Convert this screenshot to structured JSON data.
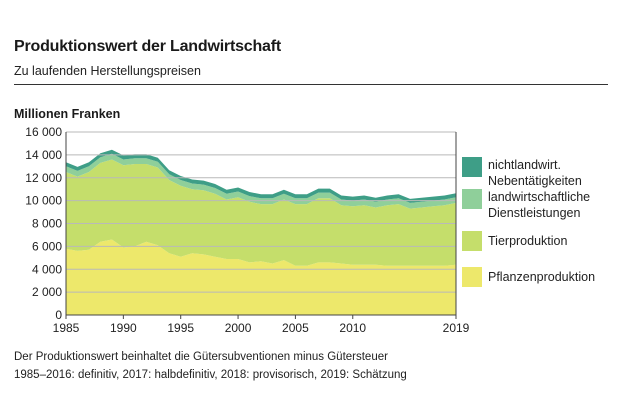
{
  "chart_data": {
    "type": "area",
    "title": "Produktionswert der Landwirtschaft",
    "subtitle": "Zu laufenden Herstellungspreisen",
    "ylabel": "Millionen Franken",
    "xlabel": "",
    "x": [
      1985,
      1986,
      1987,
      1988,
      1989,
      1990,
      1991,
      1992,
      1993,
      1994,
      1995,
      1996,
      1997,
      1998,
      1999,
      2000,
      2001,
      2002,
      2003,
      2004,
      2005,
      2006,
      2007,
      2008,
      2009,
      2010,
      2011,
      2012,
      2013,
      2014,
      2015,
      2016,
      2017,
      2018,
      2019
    ],
    "xticks": [
      "1985",
      "1990",
      "1995",
      "2000",
      "2005",
      "2010",
      "2019"
    ],
    "xtick_values": [
      1985,
      1990,
      1995,
      2000,
      2005,
      2010,
      2019
    ],
    "ylim": [
      0,
      16000
    ],
    "yticks": [
      "0",
      "2 000",
      "4 000",
      "6 000",
      "8 000",
      "10 000",
      "12 000",
      "14 000",
      "16 000"
    ],
    "ytick_values": [
      0,
      2000,
      4000,
      6000,
      8000,
      10000,
      12000,
      14000,
      16000
    ],
    "series": [
      {
        "name": "Pflanzenproduktion",
        "color": "#ede86b",
        "values": [
          5800,
          5600,
          5700,
          6400,
          6600,
          5900,
          6000,
          6400,
          6100,
          5400,
          5100,
          5400,
          5300,
          5100,
          4900,
          4900,
          4600,
          4700,
          4500,
          4800,
          4300,
          4300,
          4600,
          4600,
          4500,
          4400,
          4400,
          4400,
          4300,
          4300,
          4300,
          4300,
          4300,
          4300,
          4400
        ]
      },
      {
        "name": "Tierproduktion",
        "color": "#c5de6b",
        "values": [
          6700,
          6500,
          6800,
          6900,
          7000,
          7200,
          7200,
          6800,
          6800,
          6400,
          6200,
          5600,
          5600,
          5500,
          5200,
          5400,
          5300,
          5000,
          5200,
          5300,
          5400,
          5400,
          5600,
          5600,
          5100,
          5100,
          5200,
          5000,
          5300,
          5400,
          5000,
          5100,
          5200,
          5300,
          5400
        ]
      },
      {
        "name": "landwirtschaftliche Dienstleistungen",
        "color": "#8fcf9a",
        "values": [
          500,
          500,
          500,
          500,
          500,
          500,
          500,
          500,
          500,
          500,
          500,
          500,
          500,
          500,
          500,
          500,
          500,
          500,
          500,
          500,
          500,
          500,
          500,
          500,
          500,
          500,
          500,
          500,
          500,
          500,
          500,
          500,
          500,
          500,
          500
        ]
      },
      {
        "name": "nichtlandwirt. Nebentätigkeiten",
        "color": "#3e9e87",
        "values": [
          350,
          350,
          350,
          350,
          350,
          350,
          350,
          350,
          350,
          350,
          350,
          350,
          350,
          350,
          350,
          350,
          350,
          350,
          350,
          350,
          350,
          350,
          350,
          350,
          350,
          350,
          350,
          350,
          350,
          350,
          350,
          350,
          350,
          350,
          350
        ]
      }
    ],
    "grid": true,
    "legend_placement": "right"
  },
  "legend": {
    "items": [
      {
        "label": "nichtlandwirt. Nebentätigkeiten",
        "color": "#3e9e87"
      },
      {
        "label": "landwirtschaftliche Dienstleistungen",
        "color": "#8fcf9a"
      },
      {
        "label": "Tierproduktion",
        "color": "#c5de6b"
      },
      {
        "label": "Pflanzenproduktion",
        "color": "#ede86b"
      }
    ]
  },
  "notes": {
    "line1": "Der Produktionswert beinhaltet die Gütersubventionen minus Gütersteuer",
    "line2": "1985–2016: definitiv, 2017: halbdefinitiv, 2018: provisorisch, 2019: Schätzung"
  }
}
